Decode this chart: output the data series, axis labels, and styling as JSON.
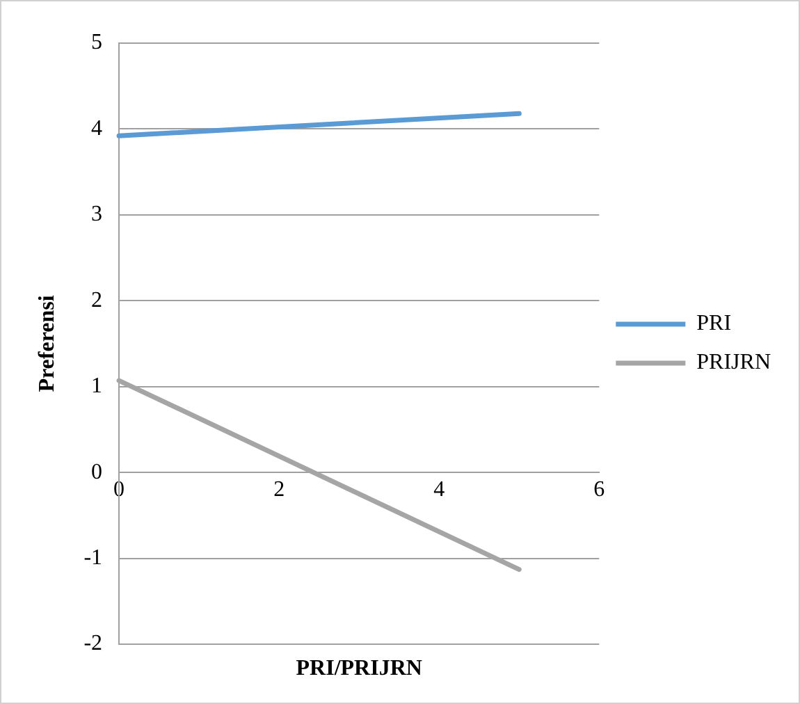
{
  "chart_data": {
    "type": "line",
    "xlabel": "PRI/PRIJRN",
    "ylabel": "Preferensi",
    "x": [
      0,
      5
    ],
    "series": [
      {
        "name": "PRI",
        "color": "#5b9bd5",
        "values": [
          3.92,
          4.18
        ]
      },
      {
        "name": "PRIJRN",
        "color": "#a5a5a5",
        "values": [
          1.07,
          -1.13
        ]
      }
    ],
    "xlim": [
      0,
      6
    ],
    "xticks": [
      0,
      2,
      4,
      6
    ],
    "ylim": [
      -2,
      5
    ],
    "yticks": [
      -2,
      -1,
      0,
      1,
      2,
      3,
      4,
      5
    ],
    "grid": "y",
    "legend": "right",
    "marker": "none",
    "line_style": "solid"
  }
}
